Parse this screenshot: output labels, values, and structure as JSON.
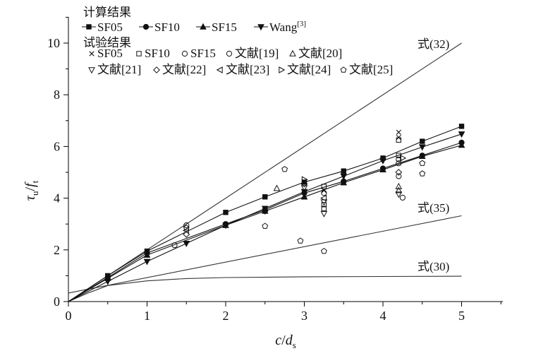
{
  "chart_data": {
    "type": "scatter",
    "xlabel": {
      "main": "c",
      "sep": "/",
      "var": "d",
      "sub": "s"
    },
    "ylabel": {
      "main": "τ",
      "sub": "u",
      "sep": "/",
      "var": "f",
      "sub2": "t"
    },
    "xlim": [
      0,
      5.5
    ],
    "ylim": [
      0,
      11
    ],
    "xticks": [
      "0",
      "1",
      "2",
      "3",
      "4",
      "5"
    ],
    "yticks": [
      "0",
      "2",
      "4",
      "6",
      "8",
      "10"
    ],
    "legend": {
      "group_calc": "计算结果",
      "group_test": "试验结果",
      "calc_entries": [
        "SF05",
        "SF10",
        "SF15",
        "Wang"
      ],
      "wang_ref": "[3]",
      "test_entries_row1": [
        "SF05",
        "SF10",
        "SF15",
        "文献[19]",
        "文献[20]"
      ],
      "test_entries_row2": [
        "文献[21]",
        "文献[22]",
        "文献[23]",
        "文献[24]",
        "文献[25]"
      ]
    },
    "annotations": {
      "eq32": "式(32)",
      "eq35": "式(35)",
      "eq30": "式(30)"
    },
    "formula_curves": [
      {
        "name": "式(32)",
        "x": [
          0,
          5
        ],
        "y": [
          0,
          10
        ]
      },
      {
        "name": "式(35)",
        "x": [
          0,
          5
        ],
        "y": [
          0.33,
          3.32
        ]
      },
      {
        "name": "式(30)",
        "x": [
          0,
          0.25,
          0.5,
          1.0,
          1.5,
          2.0,
          3.0,
          4.0,
          5.0
        ],
        "y": [
          0,
          0.33,
          0.62,
          0.8,
          0.89,
          0.93,
          0.96,
          0.97,
          0.98
        ]
      }
    ],
    "calc_series": [
      {
        "name": "SF05",
        "marker": "square",
        "x": [
          0,
          0.5,
          1,
          2,
          2.5,
          3,
          3.5,
          4,
          4.5,
          5
        ],
        "y": [
          0,
          1.0,
          1.95,
          3.45,
          4.05,
          4.62,
          5.05,
          5.55,
          6.2,
          6.78
        ]
      },
      {
        "name": "SF10",
        "marker": "circle",
        "x": [
          0,
          0.5,
          1,
          2,
          2.5,
          3,
          3.5,
          4,
          4.5,
          5
        ],
        "y": [
          0,
          0.93,
          1.88,
          3.0,
          3.55,
          4.2,
          4.65,
          5.15,
          5.65,
          6.15
        ]
      },
      {
        "name": "SF15",
        "marker": "triangle",
        "x": [
          0,
          0.5,
          1,
          2,
          2.5,
          3,
          3.5,
          4,
          4.5,
          5
        ],
        "y": [
          0,
          0.9,
          1.8,
          2.95,
          3.5,
          4.05,
          4.6,
          5.1,
          5.62,
          6.05
        ]
      },
      {
        "name": "Wang",
        "marker": "tri-down",
        "x": [
          0,
          0.5,
          1,
          1.5,
          2,
          2.5,
          3,
          3.5,
          4,
          4.5,
          5
        ],
        "y": [
          0,
          0.78,
          1.55,
          2.25,
          2.95,
          3.6,
          4.25,
          4.85,
          5.45,
          5.98,
          6.48
        ]
      }
    ],
    "test_series": [
      {
        "name": "SF05",
        "marker": "x",
        "points": [
          [
            4.2,
            6.55
          ],
          [
            4.2,
            6.35
          ],
          [
            3.25,
            4.3
          ]
        ]
      },
      {
        "name": "SF10",
        "marker": "square-open",
        "points": [
          [
            4.2,
            6.25
          ],
          [
            4.2,
            5.65
          ],
          [
            3.25,
            3.75
          ],
          [
            3.25,
            3.6
          ],
          [
            3.25,
            4.45
          ]
        ]
      },
      {
        "name": "SF15",
        "marker": "circle-open",
        "points": [
          [
            1.5,
            2.95
          ],
          [
            4.2,
            5.5
          ],
          [
            4.2,
            5.35
          ],
          [
            4.25,
            4.02
          ],
          [
            1.35,
            2.18
          ]
        ]
      },
      {
        "name": "文献[19]",
        "marker": "circle-open",
        "points": [
          [
            3.25,
            4.2
          ],
          [
            4.2,
            4.85
          ]
        ]
      },
      {
        "name": "文献[20]",
        "marker": "tri-up-open",
        "points": [
          [
            2.65,
            4.38
          ],
          [
            4.2,
            4.45
          ],
          [
            4.2,
            4.3
          ]
        ]
      },
      {
        "name": "文献[21]",
        "marker": "tri-down-open",
        "points": [
          [
            3.0,
            4.4
          ],
          [
            3.25,
            3.85
          ],
          [
            3.25,
            3.4
          ],
          [
            4.2,
            4.15
          ]
        ]
      },
      {
        "name": "文献[22]",
        "marker": "diamond-open",
        "points": [
          [
            1.5,
            2.6
          ],
          [
            2.5,
            3.5
          ],
          [
            3.0,
            4.55
          ],
          [
            4.2,
            5.0
          ]
        ]
      },
      {
        "name": "文献[23]",
        "marker": "tri-left-open",
        "points": [
          [
            1.5,
            2.75
          ],
          [
            3.25,
            4.0
          ]
        ]
      },
      {
        "name": "文献[24]",
        "marker": "tri-right-open",
        "points": [
          [
            3.0,
            4.72
          ],
          [
            4.25,
            5.55
          ]
        ]
      },
      {
        "name": "文献[25]",
        "marker": "pentagon-open",
        "points": [
          [
            1.5,
            2.85
          ],
          [
            2.5,
            2.92
          ],
          [
            2.75,
            5.12
          ],
          [
            2.95,
            2.35
          ],
          [
            3.25,
            1.95
          ],
          [
            4.5,
            5.35
          ],
          [
            4.5,
            4.95
          ]
        ]
      }
    ],
    "grid": false,
    "legend_placement": "top-left"
  }
}
